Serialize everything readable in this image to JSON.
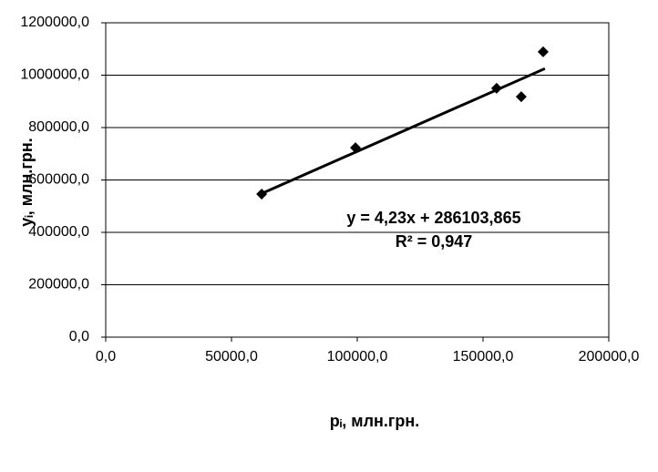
{
  "chart_data": {
    "type": "scatter",
    "x_label": "pᵢ, млн.грн.",
    "y_label": "yᵢ, млн.грн.",
    "annotations": [
      "y = 4,23x + 286103,865",
      "R² = 0,947"
    ],
    "x": [
      62000,
      99300,
      155400,
      165200,
      173900
    ],
    "values": [
      546000,
      723000,
      950000,
      918000,
      1089000
    ],
    "color": "#000000",
    "trendline": {
      "x": [
        61000,
        174600
      ],
      "values": [
        544000,
        1025000
      ],
      "color": "#000000"
    },
    "xlim": [
      0,
      200000
    ],
    "xticks": [
      {
        "value": 0,
        "label": "0,0"
      },
      {
        "value": 50000,
        "label": "50000,0"
      },
      {
        "value": 100000,
        "label": "100000,0"
      },
      {
        "value": 150000,
        "label": "150000,0"
      },
      {
        "value": 200000,
        "label": "200000,0"
      }
    ],
    "ylim": [
      0,
      1200000
    ],
    "yticks": [
      {
        "value": 0,
        "label": "0,0"
      },
      {
        "value": 200000,
        "label": "200000,0"
      },
      {
        "value": 400000,
        "label": "400000,0"
      },
      {
        "value": 600000,
        "label": "600000,0"
      },
      {
        "value": 800000,
        "label": "800000,0"
      },
      {
        "value": 1000000,
        "label": "1000000,0"
      },
      {
        "value": 1200000,
        "label": "1200000,0"
      }
    ],
    "grid": true
  }
}
